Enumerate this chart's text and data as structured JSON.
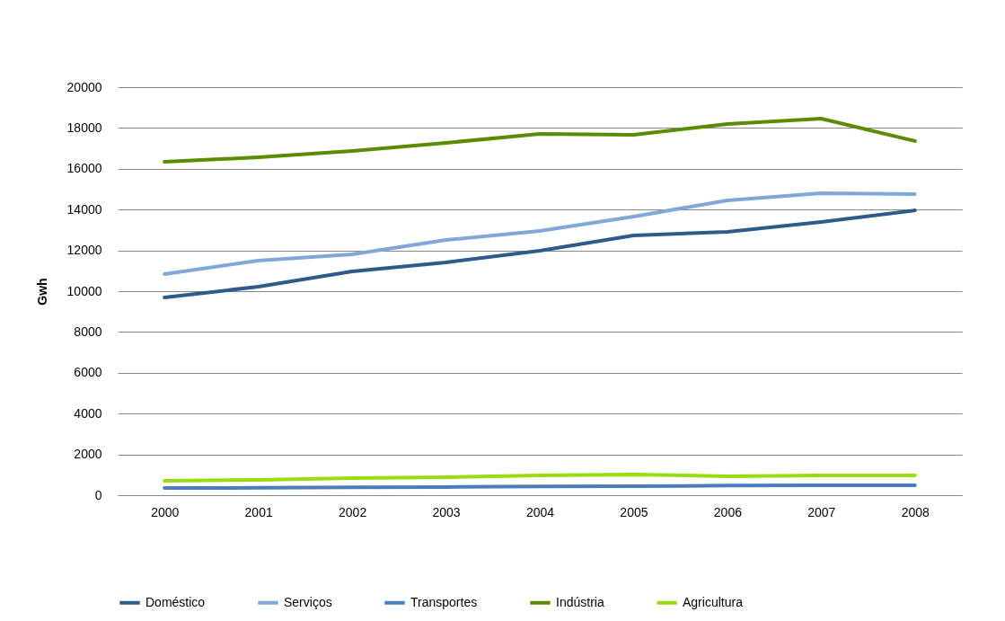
{
  "chart_data": {
    "type": "line",
    "ylabel": "Gwh",
    "categories": [
      "2000",
      "2001",
      "2002",
      "2003",
      "2004",
      "2005",
      "2006",
      "2007",
      "2008"
    ],
    "series": [
      {
        "name": "Doméstico",
        "color": "#2e5c8a",
        "values": [
          9690,
          10220,
          10970,
          11410,
          11980,
          12730,
          12910,
          13390,
          13960
        ]
      },
      {
        "name": "Serviços",
        "color": "#7fa8d8",
        "values": [
          10840,
          11500,
          11810,
          12510,
          12950,
          13660,
          14450,
          14800,
          14760
        ]
      },
      {
        "name": "Transportes",
        "color": "#4a7ebb",
        "values": [
          350,
          360,
          390,
          400,
          430,
          440,
          470,
          480,
          480
        ]
      },
      {
        "name": "Indústria",
        "color": "#5b8c00",
        "values": [
          16340,
          16560,
          16870,
          17270,
          17710,
          17670,
          18190,
          18460,
          17360
        ]
      },
      {
        "name": "Agricultura",
        "color": "#99dd11",
        "values": [
          700,
          750,
          840,
          880,
          970,
          1010,
          930,
          970,
          970
        ]
      }
    ],
    "ylim": [
      0,
      20000
    ],
    "yticks": [
      0,
      2000,
      4000,
      6000,
      8000,
      10000,
      12000,
      14000,
      16000,
      18000,
      20000
    ],
    "grid": "y",
    "legend": "bottom",
    "marker": "none",
    "line_style": "solid"
  }
}
